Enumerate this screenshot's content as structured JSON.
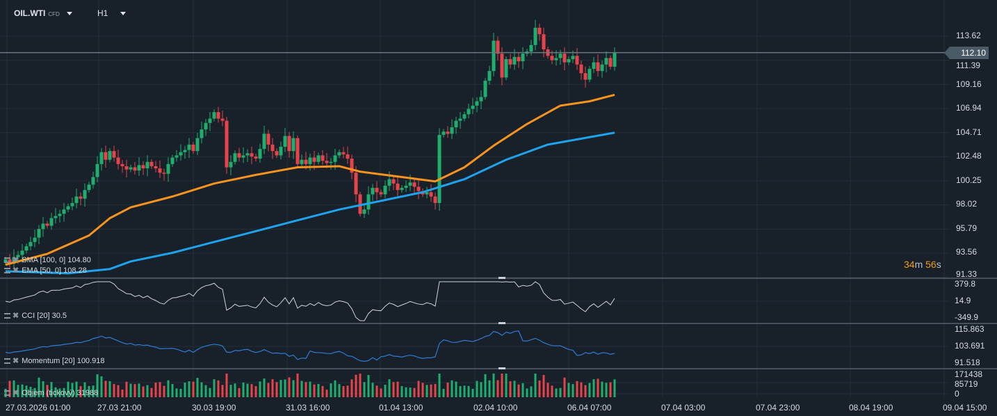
{
  "header": {
    "symbol": "OIL.WTI",
    "symbol_type": "CFD",
    "timeframe": "H1"
  },
  "colors": {
    "up": "#1fae6e",
    "down": "#e8434b",
    "sma": "#1fa3ec",
    "ema": "#f7931e",
    "cci": "#d0d4d8",
    "momentum": "#2e7bd6",
    "grid": "#243039",
    "sep": "#56616b"
  },
  "price_axis": [
    "113.62",
    "111.39",
    "109.16",
    "106.94",
    "104.71",
    "102.48",
    "100.25",
    "98.02",
    "95.79",
    "93.56",
    "91.33"
  ],
  "price_range": [
    91.33,
    113.62
  ],
  "current_price": "112.10",
  "timer": {
    "min": "34",
    "m": "m",
    "sec": "56",
    "s": "s"
  },
  "indicators": {
    "sma": "SMA [100, 0] 104.80",
    "ema": "EMA [50, 0] 108.28",
    "cci": {
      "label": "CCI [20] 30.5",
      "axis": [
        "379.8",
        "14.9",
        "-349.9"
      ]
    },
    "momentum": {
      "label": "Momentum [20] 100.918",
      "axis": [
        "115.863",
        "103.691",
        "91.518"
      ]
    },
    "volume": {
      "label": "Objem (tickový) 31988",
      "axis": [
        "171438",
        "85719",
        "0"
      ]
    }
  },
  "time_axis": [
    "27.03.2026 01:00",
    "27.03 21:00",
    "30.03 19:00",
    "31.03 16:00",
    "01.04 13:00",
    "02.04 10:00",
    "06.04 07:00",
    "07.04 03:00",
    "07.04 23:00",
    "08.04 19:00",
    "09.04 15:00"
  ],
  "closes": [
    93.0,
    92.6,
    93.2,
    93.4,
    93.8,
    94.2,
    94.6,
    95.0,
    95.8,
    96.3,
    96.1,
    96.8,
    97.0,
    97.2,
    97.6,
    97.9,
    98.2,
    98.8,
    98.6,
    99.4,
    99.9,
    100.6,
    101.8,
    102.9,
    102.2,
    103.0,
    102.4,
    101.8,
    101.6,
    101.3,
    101.5,
    101.2,
    101.7,
    101.4,
    102.0,
    101.6,
    101.4,
    101.0,
    100.9,
    101.8,
    102.4,
    102.6,
    102.9,
    103.1,
    103.6,
    103.0,
    104.2,
    105.0,
    105.6,
    106.0,
    106.6,
    106.0,
    105.8,
    101.5,
    102.0,
    102.8,
    102.4,
    102.6,
    102.8,
    102.5,
    102.3,
    103.2,
    104.6,
    103.6,
    103.0,
    102.6,
    103.4,
    104.4,
    103.0,
    104.2,
    101.8,
    102.2,
    101.8,
    102.4,
    102.0,
    102.6,
    102.1,
    101.9,
    102.0,
    102.6,
    102.9,
    102.7,
    102.3,
    101.0,
    99.0,
    97.2,
    97.6,
    99.0,
    99.6,
    99.2,
    99.0,
    99.8,
    100.4,
    100.0,
    99.4,
    99.6,
    99.8,
    100.1,
    99.7,
    99.3,
    99.0,
    99.2,
    98.8,
    98.2,
    104.5,
    104.8,
    104.6,
    105.2,
    105.8,
    106.0,
    106.4,
    106.9,
    107.2,
    107.6,
    108.0,
    109.5,
    110.4,
    113.2,
    112.0,
    109.8,
    111.5,
    111.0,
    111.7,
    111.3,
    112.0,
    112.2,
    112.8,
    114.4,
    113.8,
    112.4,
    111.8,
    111.4,
    111.6,
    112.0,
    111.2,
    111.5,
    111.8,
    111.0,
    110.2,
    109.6,
    110.6,
    111.2,
    110.4,
    111.0,
    111.6,
    110.8,
    112.1
  ],
  "sma_points": [
    [
      0,
      91.9
    ],
    [
      15,
      91.7
    ],
    [
      25,
      92.1
    ],
    [
      30,
      92.8
    ],
    [
      40,
      93.6
    ],
    [
      50,
      94.6
    ],
    [
      60,
      95.6
    ],
    [
      70,
      96.6
    ],
    [
      80,
      97.6
    ],
    [
      90,
      98.4
    ],
    [
      100,
      99.2
    ],
    [
      110,
      100.4
    ],
    [
      120,
      102.2
    ],
    [
      130,
      103.6
    ],
    [
      146,
      104.7
    ]
  ],
  "ema_points": [
    [
      0,
      92.5
    ],
    [
      10,
      93.5
    ],
    [
      20,
      95.2
    ],
    [
      25,
      96.8
    ],
    [
      30,
      97.8
    ],
    [
      40,
      98.8
    ],
    [
      50,
      100.0
    ],
    [
      60,
      100.8
    ],
    [
      70,
      101.5
    ],
    [
      80,
      101.6
    ],
    [
      85,
      101.1
    ],
    [
      95,
      100.6
    ],
    [
      103,
      100.2
    ],
    [
      110,
      101.5
    ],
    [
      117,
      103.5
    ],
    [
      125,
      105.5
    ],
    [
      133,
      107.2
    ],
    [
      140,
      107.6
    ],
    [
      146,
      108.2
    ]
  ]
}
